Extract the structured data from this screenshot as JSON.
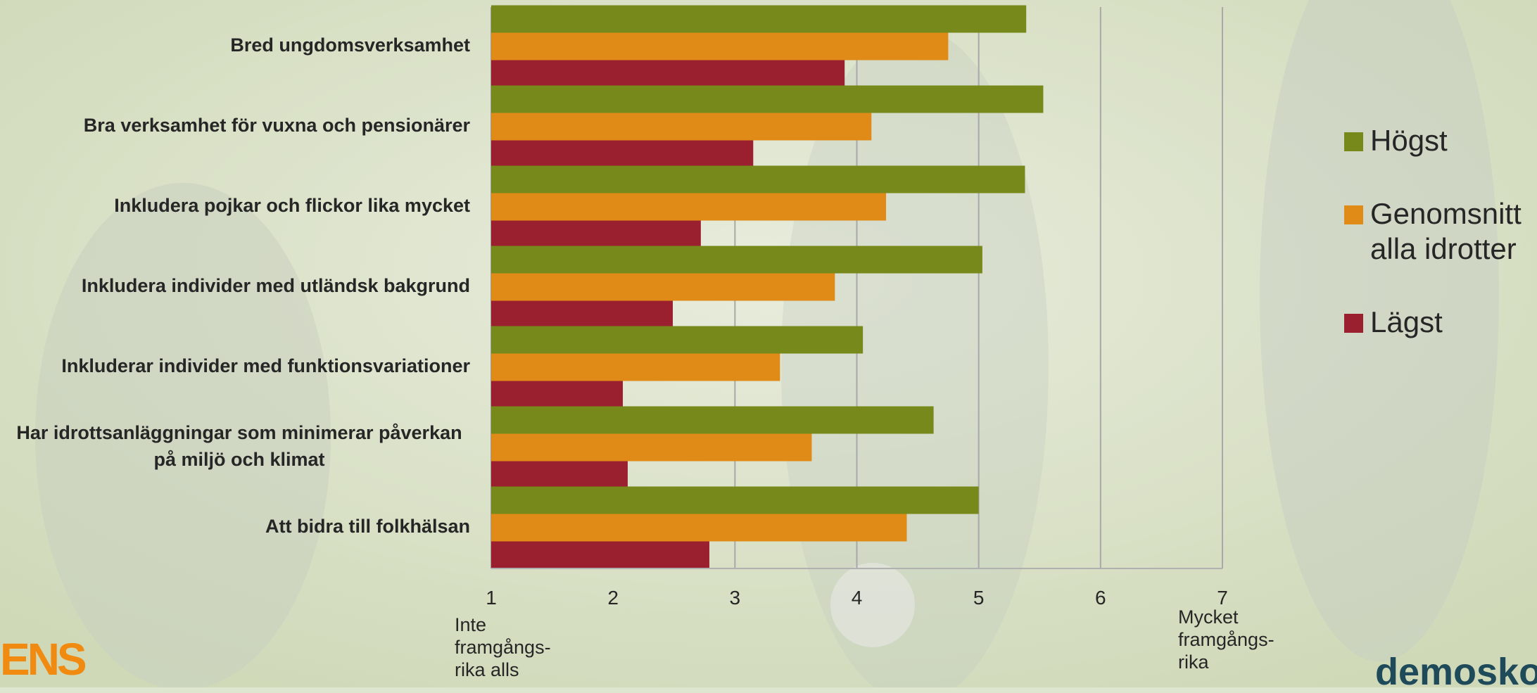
{
  "chart_data": {
    "type": "bar",
    "orientation": "horizontal",
    "categories": [
      "Bred ungdomsverksamhet",
      "Bra verksamhet för vuxna och pensionärer",
      "Inkludera pojkar och flickor lika mycket",
      "Inkludera individer med utländsk bakgrund",
      "Inkluderar individer med funktionsvariationer",
      "Har idrottsanläggningar som minimerar påverkan\npå miljö och klimat",
      "Att bidra till folkhälsan"
    ],
    "series": [
      {
        "name": "Högst",
        "color": "#76891a",
        "values": [
          5.39,
          5.53,
          5.38,
          5.03,
          4.05,
          4.63,
          5.0
        ]
      },
      {
        "name": "Genomsnitt\nalla idrotter",
        "color": "#e08a18",
        "values": [
          4.75,
          4.12,
          4.24,
          3.82,
          3.37,
          3.63,
          4.41
        ]
      },
      {
        "name": "Lägst",
        "color": "#9a2030",
        "values": [
          3.9,
          3.15,
          2.72,
          2.49,
          2.08,
          2.12,
          2.79
        ]
      }
    ],
    "xlim": [
      1,
      7
    ],
    "xticks": [
      "1",
      "2",
      "3",
      "4",
      "5",
      "6",
      "7"
    ],
    "grid": true,
    "legend_position": "right",
    "low_anchor_label": "Inte\nframgångs-\nrika alls",
    "high_anchor_label": "Mycket\nframgångs-\nrika"
  },
  "logos": {
    "left_text": "ENS",
    "right_text": "demosko"
  }
}
